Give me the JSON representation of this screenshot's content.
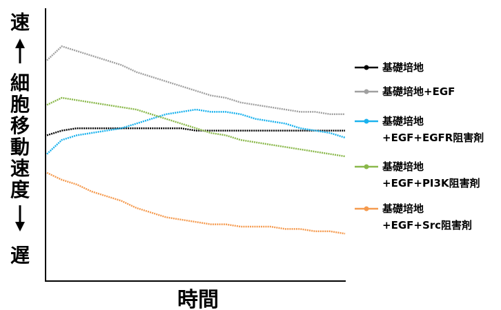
{
  "chart_data": {
    "type": "line",
    "title": "",
    "xlabel": "時間",
    "ylabel": {
      "top": "速",
      "middle": [
        "細",
        "胞",
        "移",
        "動",
        "速",
        "度"
      ],
      "bottom": "遅"
    },
    "xlim": [
      0,
      100
    ],
    "ylim": [
      0,
      100
    ],
    "x_ticks_shown": false,
    "y_ticks_shown": false,
    "grid": false,
    "legend_position": "right",
    "x": [
      0,
      5,
      10,
      15,
      20,
      25,
      30,
      35,
      40,
      45,
      50,
      55,
      60,
      65,
      70,
      75,
      80,
      85,
      90,
      95,
      100
    ],
    "series": [
      {
        "name": "基礎培地",
        "color": "#000000",
        "values": [
          54,
          56,
          57,
          57,
          57,
          57,
          57,
          57,
          57,
          57,
          56,
          56,
          56,
          56,
          56,
          56,
          56,
          56,
          56,
          56,
          56
        ]
      },
      {
        "name": "基礎培地+EGF",
        "color": "#a0a0a0",
        "values": [
          86,
          92,
          90,
          88,
          86,
          84,
          81,
          79,
          77,
          75,
          73,
          71,
          70,
          68,
          67,
          66,
          65,
          64,
          64,
          63,
          63
        ]
      },
      {
        "name": "基礎培地\n+EGF+EGFR阻害剤",
        "color": "#1ab2ee",
        "values": [
          46,
          52,
          54,
          55,
          56,
          57,
          59,
          61,
          63,
          64,
          65,
          64,
          64,
          63,
          61,
          60,
          59,
          57,
          56,
          55,
          53
        ]
      },
      {
        "name": "基礎培地\n+EGF+PI3K阻害剤",
        "color": "#8ab84a",
        "values": [
          67,
          70,
          69,
          68,
          67,
          66,
          65,
          63,
          61,
          59,
          57,
          55,
          54,
          52,
          51,
          50,
          49,
          48,
          47,
          46,
          45
        ]
      },
      {
        "name": "基礎培地\n+EGF+Src阻害剤",
        "color": "#f59a4e",
        "values": [
          38,
          35,
          33,
          30,
          28,
          26,
          23,
          21,
          19,
          18,
          17,
          16,
          16,
          15,
          15,
          15,
          14,
          14,
          13,
          13,
          12
        ]
      }
    ]
  }
}
